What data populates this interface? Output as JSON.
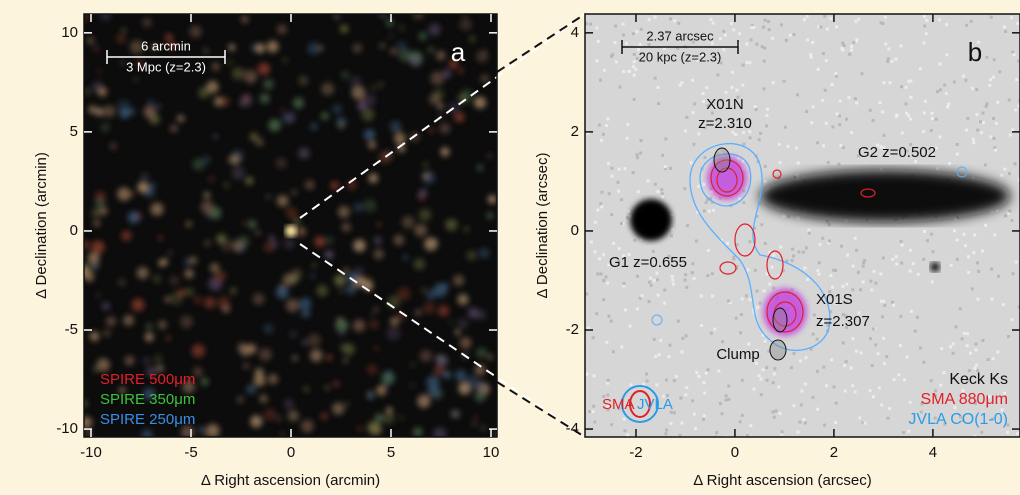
{
  "chart_data": [
    {
      "type": "image",
      "panel_label": "a",
      "xlabel": "Δ Right ascension (arcmin)",
      "ylabel": "Δ Declination (arcmin)",
      "xlim": [
        -10.35,
        10.3
      ],
      "ylim": [
        -10.4,
        10.95
      ],
      "xticks": [
        -10,
        -5,
        0,
        5,
        10
      ],
      "yticks": [
        -10,
        -5,
        0,
        5,
        10
      ],
      "scale_bar": [
        "6 arcmin",
        "3 Mpc (z=2.3)"
      ],
      "legend": [
        {
          "name": "SPIRE 500μm",
          "color": "#e0202a"
        },
        {
          "name": "SPIRE 350μm",
          "color": "#3cc43c"
        },
        {
          "name": "SPIRE 250μm",
          "color": "#3a8ee8"
        }
      ]
    },
    {
      "type": "image",
      "panel_label": "b",
      "xlabel": "Δ Right ascension (arcsec)",
      "ylabel": "Δ Declination (arcsec)",
      "xlim": [
        -3.03,
        5.76
      ],
      "ylim": [
        -4.16,
        4.38
      ],
      "xticks": [
        -2,
        0,
        2,
        4
      ],
      "yticks": [
        -4,
        -2,
        0,
        2,
        4
      ],
      "scale_bar": [
        "2.37 arcsec",
        "20 kpc (z=2.3)"
      ],
      "annotations": [
        {
          "text": "X01N",
          "color": "#111111"
        },
        {
          "text": "z=2.310",
          "color": "#111111"
        },
        {
          "text": "G2 z=0.502",
          "color": "#111111"
        },
        {
          "text": "G1 z=0.655",
          "color": "#111111"
        },
        {
          "text": "X01S",
          "color": "#111111"
        },
        {
          "text": "z=2.307",
          "color": "#111111"
        },
        {
          "text": "Clump",
          "color": "#111111"
        },
        {
          "text": "SMA",
          "color": "#e0202a"
        },
        {
          "text": "JVLA",
          "color": "#2a9be8"
        }
      ],
      "legend": [
        {
          "name": "Keck Ks",
          "color": "#111111"
        },
        {
          "name": "SMA 880μm",
          "color": "#e0202a"
        },
        {
          "name": "JVLA CO(1-0)",
          "color": "#2a9be8"
        }
      ]
    }
  ]
}
